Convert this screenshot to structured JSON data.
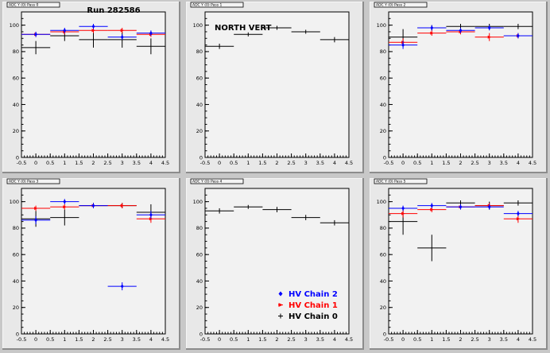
{
  "colors": {
    "chain2": "#0000ff",
    "chain1": "#ff0000",
    "chain0": "#000000"
  },
  "chart_data": [
    {
      "type": "scatter",
      "panel_title": "ADC Y (0) Pass 0",
      "annotation": "Run 282586",
      "xlim": [
        -0.5,
        4.5
      ],
      "ylim": [
        0,
        110
      ],
      "xticks": [
        "-0.5",
        "0",
        "0.5",
        "1",
        "1.5",
        "2",
        "2.5",
        "3",
        "3.5",
        "4",
        "4.5"
      ],
      "yticks": [
        "0",
        "20",
        "40",
        "60",
        "80",
        "100"
      ],
      "series": [
        {
          "key": "chain0",
          "color": "#000000",
          "points": [
            {
              "x": 0,
              "y": 83,
              "ex": 0.5,
              "ey": 5
            },
            {
              "x": 1,
              "y": 92,
              "ex": 0.5,
              "ey": 4
            },
            {
              "x": 2,
              "y": 89,
              "ex": 0.5,
              "ey": 6
            },
            {
              "x": 3,
              "y": 89,
              "ex": 0.5,
              "ey": 6
            },
            {
              "x": 4,
              "y": 84,
              "ex": 0.5,
              "ey": 6
            }
          ]
        },
        {
          "key": "chain1",
          "color": "#ff0000",
          "points": [
            {
              "x": 0,
              "y": 93,
              "ex": 0.5,
              "ey": 2
            },
            {
              "x": 1,
              "y": 95,
              "ex": 0.5,
              "ey": 2
            },
            {
              "x": 2,
              "y": 96,
              "ex": 0.5,
              "ey": 2
            },
            {
              "x": 3,
              "y": 96,
              "ex": 0.5,
              "ey": 2
            },
            {
              "x": 4,
              "y": 93,
              "ex": 0.5,
              "ey": 2
            }
          ]
        },
        {
          "key": "chain2",
          "color": "#0000ff",
          "points": [
            {
              "x": 0,
              "y": 93,
              "ex": 0.5,
              "ey": 2
            },
            {
              "x": 1,
              "y": 96,
              "ex": 0.5,
              "ey": 2
            },
            {
              "x": 2,
              "y": 99,
              "ex": 0.5,
              "ey": 2
            },
            {
              "x": 3,
              "y": 91,
              "ex": 0.5,
              "ey": 2
            },
            {
              "x": 4,
              "y": 94,
              "ex": 0.5,
              "ey": 2
            }
          ]
        }
      ]
    },
    {
      "type": "scatter",
      "panel_title": "ADC Y (0) Pass 1",
      "annotation": "NORTH VERT",
      "xlim": [
        -0.5,
        4.5
      ],
      "ylim": [
        0,
        110
      ],
      "xticks": [
        "-0.5",
        "0",
        "0.5",
        "1",
        "1.5",
        "2",
        "2.5",
        "3",
        "3.5",
        "4",
        "4.5"
      ],
      "yticks": [
        "0",
        "20",
        "40",
        "60",
        "80",
        "100"
      ],
      "series": [
        {
          "key": "chain0",
          "color": "#000000",
          "points": [
            {
              "x": 0,
              "y": 84,
              "ex": 0.5,
              "ey": 2
            },
            {
              "x": 1,
              "y": 93,
              "ex": 0.5,
              "ey": 1.5
            },
            {
              "x": 2,
              "y": 98,
              "ex": 0.5,
              "ey": 1.5
            },
            {
              "x": 3,
              "y": 95,
              "ex": 0.5,
              "ey": 1.5
            },
            {
              "x": 4,
              "y": 89,
              "ex": 0.5,
              "ey": 2
            }
          ]
        }
      ]
    },
    {
      "type": "scatter",
      "panel_title": "ADC Y (0) Pass 2",
      "annotation": "",
      "xlim": [
        -0.5,
        4.5
      ],
      "ylim": [
        0,
        110
      ],
      "xticks": [
        "-0.5",
        "0",
        "0.5",
        "1",
        "1.5",
        "2",
        "2.5",
        "3",
        "3.5",
        "4",
        "4.5"
      ],
      "yticks": [
        "0",
        "20",
        "40",
        "60",
        "80",
        "100"
      ],
      "series": [
        {
          "key": "chain0",
          "color": "#000000",
          "points": [
            {
              "x": 0,
              "y": 91,
              "ex": 0.5,
              "ey": 6
            },
            {
              "x": 1,
              "y": 98,
              "ex": 0.5,
              "ey": 2
            },
            {
              "x": 2,
              "y": 99,
              "ex": 0.5,
              "ey": 2
            },
            {
              "x": 3,
              "y": 99,
              "ex": 0.5,
              "ey": 2
            },
            {
              "x": 4,
              "y": 99,
              "ex": 0.5,
              "ey": 2
            }
          ]
        },
        {
          "key": "chain1",
          "color": "#ff0000",
          "points": [
            {
              "x": 0,
              "y": 87,
              "ex": 0.5,
              "ey": 3
            },
            {
              "x": 1,
              "y": 94,
              "ex": 0.5,
              "ey": 2
            },
            {
              "x": 2,
              "y": 95,
              "ex": 0.5,
              "ey": 2
            },
            {
              "x": 3,
              "y": 91,
              "ex": 0.5,
              "ey": 3
            },
            {
              "x": 4,
              "y": 92,
              "ex": 0.5,
              "ey": 2
            }
          ]
        },
        {
          "key": "chain2",
          "color": "#0000ff",
          "points": [
            {
              "x": 0,
              "y": 85,
              "ex": 0.5,
              "ey": 3
            },
            {
              "x": 1,
              "y": 98,
              "ex": 0.5,
              "ey": 2
            },
            {
              "x": 2,
              "y": 96,
              "ex": 0.5,
              "ey": 2
            },
            {
              "x": 3,
              "y": 98,
              "ex": 0.5,
              "ey": 2
            },
            {
              "x": 4,
              "y": 92,
              "ex": 0.5,
              "ey": 2
            }
          ]
        }
      ]
    },
    {
      "type": "scatter",
      "panel_title": "ADC Y (0) Pass 3",
      "annotation": "",
      "xlim": [
        -0.5,
        4.5
      ],
      "ylim": [
        0,
        110
      ],
      "xticks": [
        "-0.5",
        "0",
        "0.5",
        "1",
        "1.5",
        "2",
        "2.5",
        "3",
        "3.5",
        "4",
        "4.5"
      ],
      "yticks": [
        "0",
        "20",
        "40",
        "60",
        "80",
        "100"
      ],
      "series": [
        {
          "key": "chain0",
          "color": "#000000",
          "points": [
            {
              "x": 0,
              "y": 87,
              "ex": 0.5,
              "ey": 6
            },
            {
              "x": 1,
              "y": 88,
              "ex": 0.5,
              "ey": 6
            },
            {
              "x": 2,
              "y": 97,
              "ex": 0.5,
              "ey": 2
            },
            {
              "x": 3,
              "y": 97,
              "ex": 0.5,
              "ey": 2
            },
            {
              "x": 4,
              "y": 92,
              "ex": 0.5,
              "ey": 6
            }
          ]
        },
        {
          "key": "chain1",
          "color": "#ff0000",
          "points": [
            {
              "x": 0,
              "y": 95,
              "ex": 0.5,
              "ey": 2
            },
            {
              "x": 1,
              "y": 96,
              "ex": 0.5,
              "ey": 2
            },
            {
              "x": 2,
              "y": 97,
              "ex": 0.5,
              "ey": 2
            },
            {
              "x": 3,
              "y": 97,
              "ex": 0.5,
              "ey": 2
            },
            {
              "x": 4,
              "y": 87,
              "ex": 0.5,
              "ey": 3
            }
          ]
        },
        {
          "key": "chain2",
          "color": "#0000ff",
          "points": [
            {
              "x": 0,
              "y": 86,
              "ex": 0.5,
              "ey": 3
            },
            {
              "x": 1,
              "y": 100,
              "ex": 0.5,
              "ey": 2
            },
            {
              "x": 2,
              "y": 97,
              "ex": 0.5,
              "ey": 2
            },
            {
              "x": 3,
              "y": 36,
              "ex": 0.5,
              "ey": 3
            },
            {
              "x": 4,
              "y": 90,
              "ex": 0.5,
              "ey": 3
            }
          ]
        }
      ]
    },
    {
      "type": "scatter",
      "panel_title": "ADC Y (0) Pass 4",
      "annotation": "",
      "xlim": [
        -0.5,
        4.5
      ],
      "ylim": [
        0,
        110
      ],
      "xticks": [
        "-0.5",
        "0",
        "0.5",
        "1",
        "1.5",
        "2",
        "2.5",
        "3",
        "3.5",
        "4",
        "4.5"
      ],
      "yticks": [
        "0",
        "20",
        "40",
        "60",
        "80",
        "100"
      ],
      "legend": {
        "position": "bottom-right",
        "entries": [
          {
            "label": "HV Chain 2",
            "color": "#0000ff",
            "marker": "diamond"
          },
          {
            "label": "HV Chain 1",
            "color": "#ff0000",
            "marker": "arrow"
          },
          {
            "label": "HV Chain 0",
            "color": "#000000",
            "marker": "cross"
          }
        ]
      },
      "series": [
        {
          "key": "chain0",
          "color": "#000000",
          "points": [
            {
              "x": 0,
              "y": 93,
              "ex": 0.5,
              "ey": 2
            },
            {
              "x": 1,
              "y": 96,
              "ex": 0.5,
              "ey": 1.5
            },
            {
              "x": 2,
              "y": 94,
              "ex": 0.5,
              "ey": 2
            },
            {
              "x": 3,
              "y": 88,
              "ex": 0.5,
              "ey": 2
            },
            {
              "x": 4,
              "y": 84,
              "ex": 0.5,
              "ey": 2
            }
          ]
        }
      ]
    },
    {
      "type": "scatter",
      "panel_title": "ADC Y (0) Pass 5",
      "annotation": "",
      "xlim": [
        -0.5,
        4.5
      ],
      "ylim": [
        0,
        110
      ],
      "xticks": [
        "-0.5",
        "0",
        "0.5",
        "1",
        "1.5",
        "2",
        "2.5",
        "3",
        "3.5",
        "4",
        "4.5"
      ],
      "yticks": [
        "0",
        "20",
        "40",
        "60",
        "80",
        "100"
      ],
      "series": [
        {
          "key": "chain0",
          "color": "#000000",
          "points": [
            {
              "x": 0,
              "y": 85,
              "ex": 0.5,
              "ey": 10
            },
            {
              "x": 1,
              "y": 65,
              "ex": 0.5,
              "ey": 10
            },
            {
              "x": 2,
              "y": 99,
              "ex": 0.5,
              "ey": 2
            },
            {
              "x": 3,
              "y": 97,
              "ex": 0.5,
              "ey": 3
            },
            {
              "x": 4,
              "y": 99,
              "ex": 0.5,
              "ey": 2
            }
          ]
        },
        {
          "key": "chain1",
          "color": "#ff0000",
          "points": [
            {
              "x": 0,
              "y": 91,
              "ex": 0.5,
              "ey": 3
            },
            {
              "x": 1,
              "y": 94,
              "ex": 0.5,
              "ey": 2
            },
            {
              "x": 2,
              "y": 96,
              "ex": 0.5,
              "ey": 2
            },
            {
              "x": 3,
              "y": 97,
              "ex": 0.5,
              "ey": 2
            },
            {
              "x": 4,
              "y": 87,
              "ex": 0.5,
              "ey": 3
            }
          ]
        },
        {
          "key": "chain2",
          "color": "#0000ff",
          "points": [
            {
              "x": 0,
              "y": 95,
              "ex": 0.5,
              "ey": 2
            },
            {
              "x": 1,
              "y": 97,
              "ex": 0.5,
              "ey": 2
            },
            {
              "x": 2,
              "y": 96,
              "ex": 0.5,
              "ey": 2
            },
            {
              "x": 3,
              "y": 96,
              "ex": 0.5,
              "ey": 2
            },
            {
              "x": 4,
              "y": 91,
              "ex": 0.5,
              "ey": 2
            }
          ]
        }
      ]
    }
  ]
}
